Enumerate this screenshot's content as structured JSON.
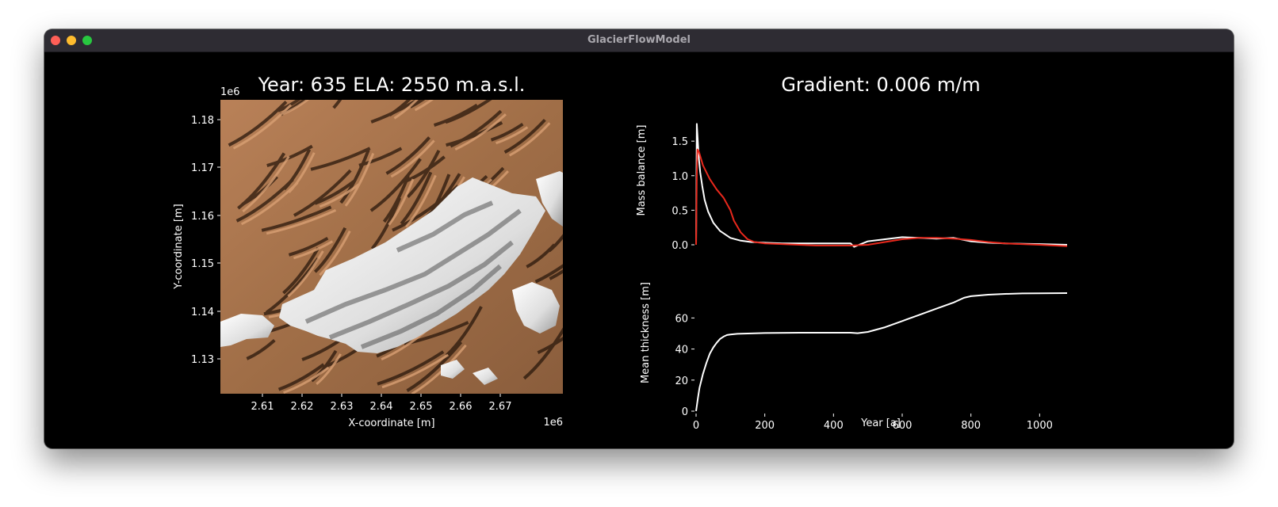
{
  "window": {
    "title": "GlacierFlowModel"
  },
  "map_panel": {
    "title": "Year: 635  ELA: 2550 m.a.s.l.",
    "xlabel": "X-coordinate [m]",
    "ylabel": "Y-coordinate [m]",
    "x_offset": "1e6",
    "y_offset": "1e6",
    "xticks": [
      "2.61",
      "2.62",
      "2.63",
      "2.64",
      "2.65",
      "2.66",
      "2.67"
    ],
    "yticks": [
      "1.13",
      "1.14",
      "1.15",
      "1.16",
      "1.17",
      "1.18"
    ]
  },
  "right_panel": {
    "title": "Gradient: 0.006 m/m"
  },
  "colors": {
    "terrain": "#c48a5c",
    "ice": "#f2f2f2",
    "mass_balance_raw": "#ffffff",
    "mass_balance_smooth": "#e8281c",
    "thickness": "#ffffff"
  },
  "chart_data": [
    {
      "type": "line",
      "ylabel": "Mass balance [m]",
      "xlim": [
        0,
        1080
      ],
      "ylim": [
        0,
        1.8
      ],
      "yticks": [
        "0.0",
        "0.5",
        "1.0",
        "1.5"
      ],
      "series": [
        {
          "x": [
            0,
            2,
            5,
            8,
            12,
            18,
            25,
            35,
            50,
            70,
            100,
            130,
            160,
            200,
            250,
            300,
            400,
            450,
            460,
            500,
            550,
            600,
            650,
            700,
            750,
            800,
            850,
            900,
            1000,
            1080
          ],
          "y": [
            0.0,
            1.75,
            1.5,
            1.25,
            1.05,
            0.85,
            0.65,
            0.48,
            0.32,
            0.2,
            0.1,
            0.06,
            0.04,
            0.03,
            0.02,
            0.02,
            0.02,
            0.02,
            -0.03,
            0.05,
            0.08,
            0.11,
            0.1,
            0.09,
            0.1,
            0.05,
            0.03,
            0.02,
            0.01,
            0.0
          ]
        },
        {
          "x": [
            0,
            2,
            4,
            8,
            20,
            40,
            60,
            80,
            100,
            110,
            130,
            150,
            170,
            200,
            250,
            300,
            350,
            400,
            450,
            500,
            550,
            600,
            650,
            700,
            750,
            800,
            850,
            900,
            1000,
            1080
          ],
          "y": [
            0.0,
            1.0,
            1.38,
            1.35,
            1.15,
            0.95,
            0.8,
            0.68,
            0.5,
            0.35,
            0.18,
            0.08,
            0.04,
            0.02,
            0.01,
            0.0,
            -0.01,
            -0.01,
            -0.01,
            0.0,
            0.04,
            0.08,
            0.1,
            0.1,
            0.09,
            0.07,
            0.04,
            0.02,
            0.0,
            -0.02
          ]
        }
      ]
    },
    {
      "type": "line",
      "xlabel": "Year [a]",
      "ylabel": "Mean thickness [m]",
      "xlim": [
        0,
        1080
      ],
      "ylim": [
        0,
        76
      ],
      "xticks": [
        "0",
        "200",
        "400",
        "600",
        "800",
        "1000"
      ],
      "yticks": [
        "0",
        "20",
        "40",
        "60"
      ],
      "series": [
        {
          "x": [
            0,
            5,
            10,
            20,
            30,
            40,
            50,
            60,
            70,
            80,
            90,
            100,
            120,
            150,
            200,
            300,
            400,
            450,
            470,
            500,
            550,
            600,
            650,
            700,
            750,
            780,
            800,
            850,
            900,
            950,
            1000,
            1080
          ],
          "y": [
            0,
            8,
            15,
            24,
            31,
            37,
            41,
            44,
            46.5,
            48,
            49,
            49.3,
            49.8,
            50,
            50.3,
            50.5,
            50.5,
            50.5,
            50.2,
            51,
            54,
            58,
            62,
            66,
            70,
            73,
            74,
            75,
            75.5,
            75.8,
            75.9,
            76
          ]
        }
      ]
    }
  ]
}
